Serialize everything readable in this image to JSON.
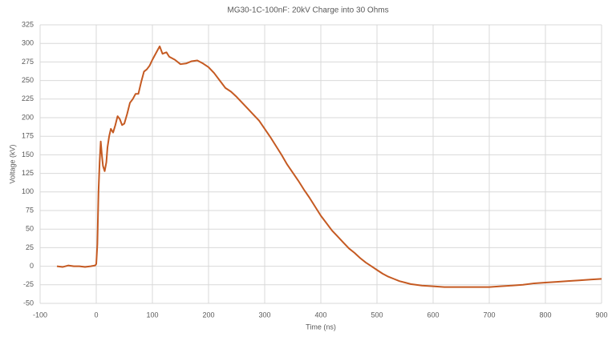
{
  "chart_data": {
    "type": "line",
    "title": "MG30-1C-100nF: 20kV Charge into 30 Ohms",
    "x_label": "Time (ns)",
    "y_label": "Voltage (kV)",
    "color": "#c55a22",
    "grid": true,
    "xlim": [
      -100,
      900
    ],
    "xticks": [
      -100,
      0,
      100,
      200,
      300,
      400,
      500,
      600,
      700,
      800,
      900
    ],
    "ylim": [
      -50,
      325
    ],
    "yticks": [
      -50,
      -25,
      0,
      25,
      50,
      75,
      100,
      125,
      150,
      175,
      200,
      225,
      250,
      275,
      300,
      325
    ],
    "x": [
      -70,
      -60,
      -50,
      -40,
      -30,
      -20,
      -10,
      -2,
      0,
      2,
      4,
      6,
      8,
      10,
      12,
      15,
      18,
      20,
      23,
      26,
      30,
      34,
      38,
      42,
      46,
      50,
      55,
      60,
      65,
      70,
      75,
      80,
      85,
      90,
      95,
      100,
      105,
      110,
      113,
      118,
      125,
      130,
      140,
      150,
      160,
      170,
      180,
      190,
      200,
      210,
      220,
      230,
      240,
      250,
      260,
      270,
      280,
      290,
      300,
      310,
      320,
      330,
      340,
      350,
      360,
      370,
      380,
      390,
      400,
      410,
      420,
      430,
      440,
      450,
      460,
      470,
      480,
      490,
      500,
      510,
      520,
      530,
      540,
      550,
      560,
      580,
      600,
      620,
      640,
      660,
      680,
      700,
      720,
      740,
      760,
      780,
      800,
      820,
      840,
      860,
      880,
      900
    ],
    "values": [
      0,
      -1,
      1,
      0,
      0,
      -1,
      0,
      1,
      3,
      30,
      100,
      140,
      168,
      150,
      135,
      128,
      140,
      160,
      175,
      185,
      180,
      190,
      202,
      198,
      190,
      192,
      205,
      220,
      225,
      232,
      232,
      248,
      262,
      265,
      270,
      278,
      285,
      292,
      296,
      286,
      288,
      282,
      278,
      272,
      273,
      276,
      277,
      273,
      268,
      260,
      250,
      240,
      235,
      228,
      220,
      212,
      204,
      196,
      185,
      174,
      162,
      150,
      137,
      126,
      115,
      103,
      92,
      80,
      68,
      58,
      48,
      40,
      32,
      24,
      18,
      11,
      5,
      0,
      -5,
      -10,
      -14,
      -17,
      -20,
      -22,
      -24,
      -26,
      -27,
      -28,
      -28,
      -28,
      -28,
      -28,
      -27,
      -26,
      -25,
      -23,
      -22,
      -21,
      -20,
      -19,
      -18,
      -17
    ]
  }
}
